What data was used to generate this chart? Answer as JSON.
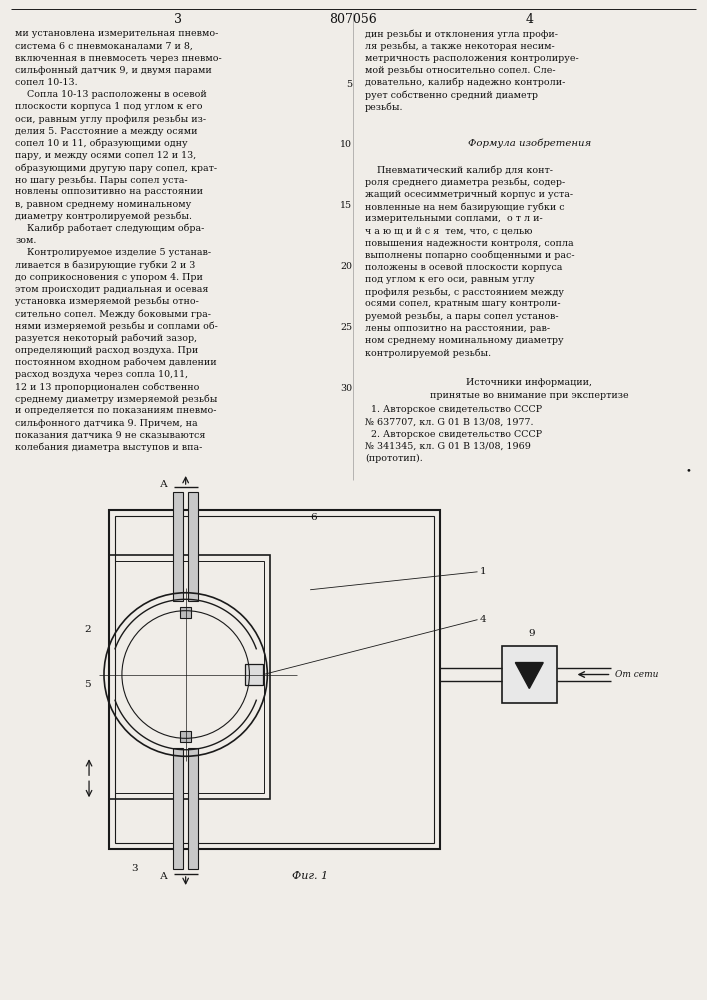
{
  "page_width": 7.07,
  "page_height": 10.0,
  "bg_color": "#f0ede8",
  "line_color": "#1a1a1a",
  "text_color": "#111111",
  "header_number": "807056",
  "page_left": "3",
  "page_right": "4",
  "col1_text": [
    "ми установлена измерительная пневмо-",
    "система 6 с пневмоканалами 7 и 8,",
    "включенная в пневмосеть через пневмо-",
    "сильфонный датчик 9, и двумя парами",
    "сопел 10-13.",
    "    Сопла 10-13 расположены в осевой",
    "плоскости корпуса 1 под углом к его",
    "оси, равным углу профиля резьбы из-",
    "делия 5. Расстояние а между осями",
    "сопел 10 и 11, образующими одну",
    "пару, и между осями сопел 12 и 13,",
    "образующими другую пару сопел, крат-",
    "но шагу резьбы. Пары сопел уста-",
    "новлены оппозитивно на расстоянии",
    "в, равном среднему номинальному",
    "диаметру контролируемой резьбы.",
    "    Калибр работает следующим обра-",
    "зом.",
    "    Контролируемое изделие 5 устанав-",
    "ливается в базирующие губки 2 и 3",
    "до соприкосновения с упором 4. При",
    "этом происходит радиальная и осевая",
    "установка измеряемой резьбы отно-",
    "сительно сопел. Между боковыми гра-",
    "нями измеряемой резьбы и соплами об-",
    "разуется некоторый рабочий зазор,",
    "определяющий расход воздуха. При",
    "постоянном входном рабочем давлении",
    "расход воздуха через сопла 10,11,",
    "12 и 13 пропорционален собственно",
    "среднему диаметру измеряемой резьбы",
    "и определяется по показаниям пневмо-",
    "сильфонного датчика 9. Причем, на",
    "показания датчика 9 не сказываются",
    "колебания диаметра выступов и впа-"
  ],
  "col2_text_top": [
    "дин резьбы и отклонения угла профи-",
    "ля резьбы, а также некоторая несим-",
    "метричность расположения контролируе-",
    "мой резьбы относительно сопел. Сле-",
    "довательно, калибр надежно контроли-",
    "рует собственно средний диаметр",
    "резьбы."
  ],
  "formula_title": "Формула изобретения",
  "formula_text": [
    "    Пневматический калибр для конт-",
    "роля среднего диаметра резьбы, содер-",
    "жащий осесимметричный корпус и уста-",
    "новленные на нем базирующие губки с",
    "измерительными соплами,  о т л и-",
    "ч а ю щ и й с я  тем, что, с целью",
    "повышения надежности контроля, сопла",
    "выполнены попарно сообщенными и рас-",
    "положены в осевой плоскости корпуса",
    "под углом к его оси, равным углу",
    "профиля резьбы, с расстоянием между",
    "осями сопел, кратным шагу контроли-",
    "руемой резьбы, а пары сопел установ-",
    "лены оппозитно на расстоянии, рав-",
    "ном среднему номинальному диаметру",
    "контролируемой резьбы."
  ],
  "sources_title": "Источники информации,",
  "sources_sub": "принятые во внимание при экспертизе",
  "sources_text": [
    "  1. Авторское свидетельство СССР",
    "№ 637707, кл. G 01 B 13/08, 1977.",
    "  2. Авторское свидетельство СССР",
    "№ 341345, кл. G 01 B 13/08, 1969",
    "(прототип)."
  ],
  "line_numbers_col2": [
    "5",
    "10",
    "15",
    "20",
    "25",
    "30"
  ],
  "fig_caption": "Фиг. 1"
}
